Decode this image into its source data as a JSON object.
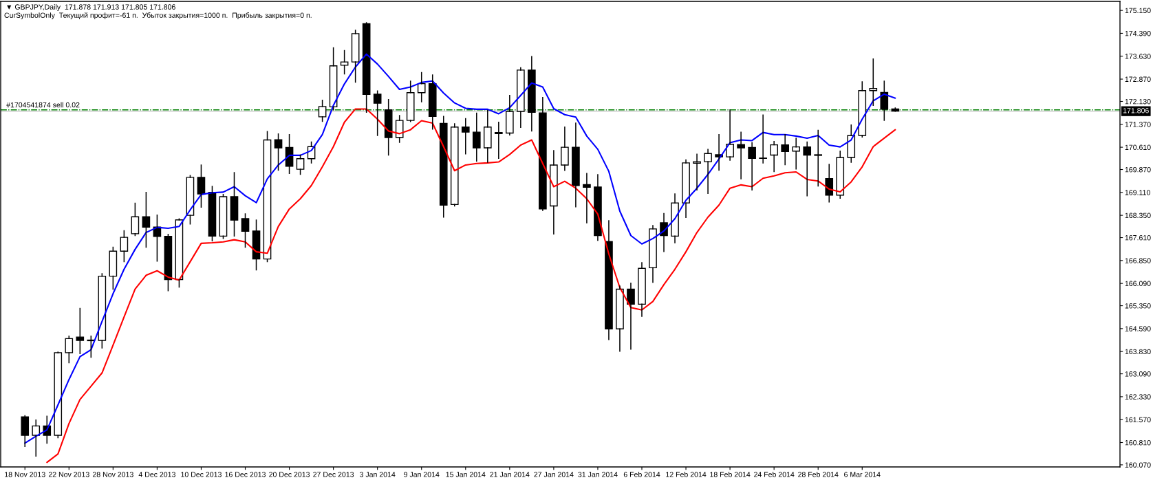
{
  "chart_data": {
    "type": "candlestick",
    "title": "▼ GBPJPY,Daily  171.878 171.913 171.805 171.806",
    "subtitle": "CurSymbolOnly  Текущий профит=-61 п.  Убыток закрытия=1000 п.  Прибыль закрытия=0 п.",
    "categories": [
      "18 Nov 2013",
      null,
      null,
      null,
      "22 Nov 2013",
      null,
      null,
      null,
      "28 Nov 2013",
      null,
      null,
      null,
      "4 Dec 2013",
      null,
      null,
      null,
      "10 Dec 2013",
      null,
      null,
      null,
      "16 Dec 2013",
      null,
      null,
      null,
      "20 Dec 2013",
      null,
      null,
      null,
      "27 Dec 2013",
      null,
      null,
      null,
      "3 Jan 2014",
      null,
      null,
      null,
      "9 Jan 2014",
      null,
      null,
      null,
      "15 Jan 2014",
      null,
      null,
      null,
      "21 Jan 2014",
      null,
      null,
      null,
      "27 Jan 2014",
      null,
      null,
      null,
      "31 Jan 2014",
      null,
      null,
      null,
      "6 Feb 2014",
      null,
      null,
      null,
      "12 Feb 2014",
      null,
      null,
      null,
      "18 Feb 2014",
      null,
      null,
      null,
      "24 Feb 2014",
      null,
      null,
      null,
      "28 Feb 2014",
      null,
      null,
      null,
      "6 Mar 2014",
      null,
      null,
      null
    ],
    "ohlc": [
      [
        161.66,
        161.7,
        160.68,
        161.05
      ],
      [
        161.05,
        161.56,
        160.36,
        161.36
      ],
      [
        161.36,
        161.68,
        160.79,
        161.05
      ],
      [
        161.05,
        163.81,
        160.97,
        163.79
      ],
      [
        163.79,
        164.34,
        163.46,
        164.26
      ],
      [
        164.31,
        165.26,
        163.76,
        164.2
      ],
      [
        164.19,
        164.34,
        163.64,
        164.21
      ],
      [
        164.2,
        166.41,
        163.95,
        166.33
      ],
      [
        166.33,
        167.29,
        165.9,
        167.16
      ],
      [
        167.16,
        167.84,
        166.81,
        167.62
      ],
      [
        167.74,
        168.75,
        167.68,
        168.3
      ],
      [
        168.3,
        169.11,
        167.29,
        167.96
      ],
      [
        167.96,
        168.36,
        166.83,
        167.65
      ],
      [
        167.65,
        167.72,
        165.85,
        166.22
      ],
      [
        166.22,
        168.23,
        165.97,
        168.2
      ],
      [
        168.35,
        169.67,
        168.06,
        169.61
      ],
      [
        169.61,
        170.02,
        168.62,
        169.06
      ],
      [
        169.11,
        169.31,
        167.5,
        167.66
      ],
      [
        167.66,
        169.04,
        167.58,
        168.97
      ],
      [
        168.97,
        169.77,
        167.66,
        168.19
      ],
      [
        168.24,
        168.4,
        167.29,
        167.82
      ],
      [
        167.83,
        168.19,
        166.54,
        166.9
      ],
      [
        166.9,
        171.13,
        166.81,
        170.85
      ],
      [
        170.86,
        171.05,
        169.85,
        170.59
      ],
      [
        170.6,
        171.03,
        169.74,
        169.98
      ],
      [
        169.88,
        170.35,
        169.71,
        170.23
      ],
      [
        170.23,
        170.78,
        170.09,
        170.63
      ],
      [
        171.62,
        172.17,
        171.47,
        171.96
      ],
      [
        171.95,
        173.91,
        171.85,
        173.31
      ],
      [
        173.33,
        173.82,
        173.04,
        173.44
      ],
      [
        173.44,
        174.49,
        172.77,
        174.38
      ],
      [
        174.71,
        174.74,
        171.77,
        172.36
      ],
      [
        172.37,
        172.48,
        171.0,
        172.07
      ],
      [
        171.85,
        172.19,
        170.35,
        170.93
      ],
      [
        170.93,
        171.66,
        170.77,
        171.5
      ],
      [
        171.5,
        172.8,
        171.46,
        172.42
      ],
      [
        172.42,
        173.09,
        172.12,
        172.72
      ],
      [
        172.72,
        173.01,
        171.21,
        171.63
      ],
      [
        171.4,
        171.63,
        168.29,
        168.69
      ],
      [
        168.71,
        171.39,
        168.66,
        171.28
      ],
      [
        171.28,
        171.56,
        170.39,
        171.11
      ],
      [
        171.11,
        171.74,
        170.15,
        170.59
      ],
      [
        170.59,
        171.83,
        170.11,
        171.28
      ],
      [
        171.1,
        171.44,
        170.24,
        171.06
      ],
      [
        171.08,
        172.33,
        171.02,
        171.8
      ],
      [
        171.8,
        173.25,
        171.27,
        173.17
      ],
      [
        173.17,
        173.62,
        171.15,
        171.77
      ],
      [
        171.75,
        172.26,
        168.51,
        168.56
      ],
      [
        168.66,
        170.5,
        167.73,
        170.02
      ],
      [
        170.02,
        171.28,
        169.84,
        170.61
      ],
      [
        170.61,
        171.41,
        168.63,
        169.34
      ],
      [
        169.37,
        169.74,
        168.1,
        169.28
      ],
      [
        169.29,
        169.7,
        167.52,
        167.68
      ],
      [
        167.48,
        168.17,
        164.23,
        164.58
      ],
      [
        164.58,
        166.0,
        163.84,
        165.9
      ],
      [
        165.9,
        166.1,
        163.91,
        165.4
      ],
      [
        165.4,
        166.78,
        165.0,
        166.59
      ],
      [
        166.61,
        168.01,
        166.13,
        167.9
      ],
      [
        168.1,
        168.41,
        167.15,
        167.68
      ],
      [
        167.66,
        169.06,
        167.44,
        168.76
      ],
      [
        168.76,
        170.19,
        168.28,
        170.09
      ],
      [
        170.08,
        170.38,
        169.19,
        170.13
      ],
      [
        170.13,
        170.54,
        169.08,
        170.4
      ],
      [
        170.36,
        171.03,
        169.85,
        170.29
      ],
      [
        170.29,
        171.85,
        170.18,
        170.71
      ],
      [
        170.7,
        171.11,
        169.56,
        170.59
      ],
      [
        170.6,
        170.76,
        169.19,
        170.24
      ],
      [
        170.24,
        171.68,
        170.09,
        170.25
      ],
      [
        170.35,
        170.8,
        169.8,
        170.69
      ],
      [
        170.69,
        171.03,
        170.03,
        170.47
      ],
      [
        170.48,
        170.91,
        169.89,
        170.62
      ],
      [
        170.62,
        170.78,
        169.0,
        170.35
      ],
      [
        170.36,
        171.17,
        169.32,
        170.34
      ],
      [
        169.57,
        170.04,
        168.79,
        169.02
      ],
      [
        169.02,
        170.48,
        168.92,
        170.27
      ],
      [
        170.27,
        171.35,
        170.11,
        171.0
      ],
      [
        171.0,
        172.78,
        170.95,
        172.49
      ],
      [
        172.49,
        173.54,
        172.0,
        172.56
      ],
      [
        172.43,
        172.8,
        171.5,
        171.87
      ],
      [
        171.878,
        171.913,
        171.805,
        171.806
      ]
    ],
    "colors": [
      "#000000",
      "#ffffff",
      "#000000",
      "#ffffff",
      "#ffffff",
      "#000000",
      "#ffffff",
      "#ffffff",
      "#ffffff",
      "#ffffff",
      "#ffffff",
      "#000000",
      "#000000",
      "#000000",
      "#ffffff",
      "#ffffff",
      "#000000",
      "#000000",
      "#ffffff",
      "#000000",
      "#000000",
      "#000000",
      "#ffffff",
      "#000000",
      "#000000",
      "#ffffff",
      "#ffffff",
      "#ffffff",
      "#ffffff",
      "#ffffff",
      "#ffffff",
      "#000000",
      "#000000",
      "#000000",
      "#ffffff",
      "#ffffff",
      "#ffffff",
      "#000000",
      "#000000",
      "#ffffff",
      "#000000",
      "#000000",
      "#ffffff",
      "#000000",
      "#ffffff",
      "#ffffff",
      "#000000",
      "#000000",
      "#ffffff",
      "#ffffff",
      "#000000",
      "#000000",
      "#000000",
      "#000000",
      "#ffffff",
      "#000000",
      "#ffffff",
      "#ffffff",
      "#000000",
      "#ffffff",
      "#ffffff",
      "#ffffff",
      "#ffffff",
      "#000000",
      "#ffffff",
      "#000000",
      "#000000",
      "#ffffff",
      "#ffffff",
      "#000000",
      "#ffffff",
      "#000000",
      "#000000",
      "#000000",
      "#ffffff",
      "#ffffff",
      "#ffffff",
      "#ffffff",
      "#000000",
      "#000000"
    ],
    "series": [
      {
        "type": "line",
        "color": "#0000ff",
        "values": [
          160.79,
          161.02,
          161.23,
          162.06,
          162.9,
          163.66,
          163.89,
          164.83,
          165.75,
          166.56,
          167.22,
          167.78,
          167.95,
          167.92,
          167.98,
          168.53,
          169.04,
          169.1,
          169.12,
          169.3,
          169.0,
          168.77,
          169.56,
          170.02,
          170.34,
          170.34,
          170.5,
          171.03,
          172.0,
          172.71,
          173.27,
          173.7,
          173.37,
          172.96,
          172.53,
          172.61,
          172.76,
          172.81,
          172.41,
          172.08,
          171.9,
          171.87,
          171.87,
          171.72,
          171.92,
          172.33,
          172.74,
          172.61,
          171.89,
          171.69,
          171.61,
          170.98,
          170.54,
          169.81,
          168.49,
          167.68,
          167.4,
          167.58,
          167.83,
          168.24,
          168.85,
          169.25,
          169.71,
          170.22,
          170.76,
          170.85,
          170.83,
          171.1,
          171.03,
          171.03,
          170.98,
          170.91,
          171.0,
          170.68,
          170.62,
          170.85,
          171.54,
          172.15,
          172.37,
          172.24
        ]
      },
      {
        "type": "line",
        "color": "#ff0000",
        "values": [
          null,
          null,
          160.15,
          160.43,
          161.44,
          162.24,
          162.68,
          163.12,
          164.04,
          164.98,
          165.9,
          166.36,
          166.51,
          166.3,
          166.2,
          166.81,
          167.42,
          167.44,
          167.47,
          167.54,
          167.47,
          167.14,
          167.09,
          167.98,
          168.56,
          168.9,
          169.34,
          169.96,
          170.63,
          171.44,
          171.88,
          171.88,
          171.54,
          171.15,
          171.06,
          171.19,
          171.49,
          171.41,
          170.63,
          169.83,
          170.02,
          170.07,
          170.09,
          170.12,
          170.37,
          170.68,
          170.85,
          170.07,
          169.3,
          169.48,
          169.25,
          168.9,
          168.39,
          167.07,
          165.95,
          165.29,
          165.21,
          165.49,
          166.05,
          166.56,
          167.14,
          167.78,
          168.29,
          168.69,
          169.25,
          169.36,
          169.3,
          169.58,
          169.66,
          169.76,
          169.79,
          169.54,
          169.49,
          169.22,
          169.13,
          169.46,
          169.96,
          170.63,
          170.91,
          171.19
        ]
      }
    ],
    "ylim": [
      160.0,
      175.45
    ],
    "yticks": [
      {
        "value": 160.07,
        "label": "160.070"
      },
      {
        "value": 160.81,
        "label": "160.810"
      },
      {
        "value": 161.57,
        "label": "161.570"
      },
      {
        "value": 162.33,
        "label": "162.330"
      },
      {
        "value": 163.09,
        "label": "163.090"
      },
      {
        "value": 163.83,
        "label": "163.830"
      },
      {
        "value": 164.59,
        "label": "164.590"
      },
      {
        "value": 165.35,
        "label": "165.350"
      },
      {
        "value": 166.09,
        "label": "166.090"
      },
      {
        "value": 166.85,
        "label": "166.850"
      },
      {
        "value": 167.61,
        "label": "167.610"
      },
      {
        "value": 168.35,
        "label": "168.350"
      },
      {
        "value": 169.11,
        "label": "169.110"
      },
      {
        "value": 169.87,
        "label": "169.870"
      },
      {
        "value": 170.61,
        "label": "170.610"
      },
      {
        "value": 171.37,
        "label": "171.370"
      },
      {
        "value": 172.13,
        "label": "172.130"
      },
      {
        "value": 172.87,
        "label": "172.870"
      },
      {
        "value": 173.63,
        "label": "173.630"
      },
      {
        "value": 174.39,
        "label": "174.390"
      },
      {
        "value": 175.15,
        "label": "175.150"
      }
    ],
    "ref_lines": [
      {
        "axis": "y",
        "value": 171.85,
        "label": "#1704541874 sell 0.02",
        "color": "#008000",
        "line_style": "dashdot"
      },
      {
        "axis": "y",
        "value": 171.806,
        "label": "171.806",
        "color": "#c0c0c0",
        "line_style": "solid"
      }
    ],
    "grid": false
  }
}
